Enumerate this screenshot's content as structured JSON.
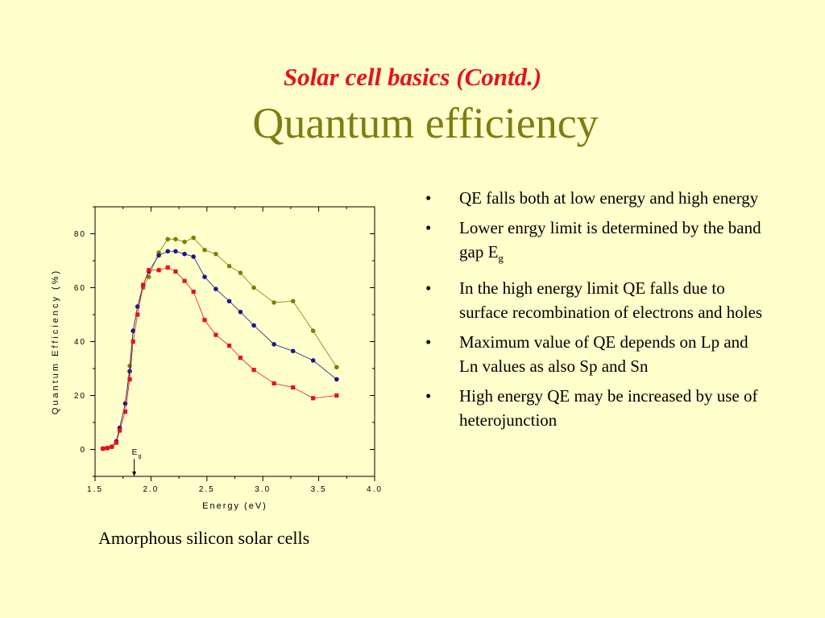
{
  "slide": {
    "subtitle": "Solar cell basics (Contd.)",
    "title": "Quantum efficiency",
    "bullets": [
      {
        "text": "QE falls both at low energy and high energy"
      },
      {
        "text": "Lower enrgy limit is determined by the band gap E",
        "sub": "g"
      },
      {
        "text": "In the high energy limit QE falls due to surface recombination of electrons and holes"
      },
      {
        "text": "Maximum value of QE depends on Lp and Ln values as also Sp and Sn"
      },
      {
        "text": "High energy QE may be increased by use of heterojunction"
      }
    ],
    "bullet_symbol": "•",
    "caption": "Amorphous silicon solar cells"
  },
  "chart_data": {
    "type": "line",
    "xlabel": "Energy (eV)",
    "ylabel": "Quantum Efficiency (%)",
    "xlim": [
      1.5,
      4.0
    ],
    "ylim": [
      -10,
      90
    ],
    "xticks": [
      "1.5",
      "2.0",
      "2.5",
      "3.0",
      "3.5",
      "4.0"
    ],
    "yticks": [
      "0",
      "20",
      "40",
      "60",
      "80"
    ],
    "annotation": {
      "text": "E",
      "sub": "g",
      "x": 1.85
    },
    "series": [
      {
        "color": "#7f7f00",
        "marker": "circle",
        "x": [
          1.57,
          1.61,
          1.65,
          1.69,
          1.72,
          1.77,
          1.81,
          1.84,
          1.88,
          1.93,
          1.98,
          2.07,
          2.15,
          2.22,
          2.3,
          2.38,
          2.48,
          2.58,
          2.7,
          2.8,
          2.92,
          3.1,
          3.27,
          3.45,
          3.66
        ],
        "y": [
          0.3,
          0.5,
          1.0,
          3.0,
          8.0,
          17.0,
          31.0,
          44.0,
          53.0,
          60.0,
          64.0,
          73.0,
          78.0,
          78.0,
          77.0,
          78.5,
          74.0,
          72.5,
          68.0,
          65.5,
          60.0,
          54.5,
          55.0,
          44.0,
          30.5
        ]
      },
      {
        "color": "#1a1a8c",
        "marker": "circle",
        "x": [
          1.57,
          1.61,
          1.65,
          1.69,
          1.72,
          1.77,
          1.81,
          1.84,
          1.88,
          1.93,
          1.98,
          2.07,
          2.15,
          2.22,
          2.3,
          2.38,
          2.48,
          2.58,
          2.7,
          2.8,
          2.92,
          3.1,
          3.27,
          3.45,
          3.66
        ],
        "y": [
          0.3,
          0.5,
          1.0,
          3.0,
          8.0,
          17.0,
          29.0,
          44.0,
          53.0,
          61.0,
          66.0,
          72.0,
          73.5,
          73.5,
          72.5,
          71.5,
          64.0,
          59.5,
          55.0,
          51.0,
          46.0,
          39.0,
          36.5,
          33.0,
          26.0
        ]
      },
      {
        "color": "#e8111a",
        "marker": "square",
        "x": [
          1.57,
          1.61,
          1.65,
          1.69,
          1.72,
          1.77,
          1.81,
          1.84,
          1.88,
          1.93,
          1.98,
          2.07,
          2.15,
          2.22,
          2.3,
          2.38,
          2.48,
          2.58,
          2.7,
          2.8,
          2.92,
          3.1,
          3.27,
          3.45,
          3.66
        ],
        "y": [
          0.3,
          0.5,
          1.0,
          2.5,
          7.0,
          14.0,
          26.0,
          40.0,
          50.0,
          61.0,
          66.5,
          66.5,
          67.5,
          66.0,
          62.5,
          58.5,
          48.0,
          42.5,
          38.5,
          34.0,
          29.5,
          24.5,
          23.0,
          19.0,
          20.0
        ]
      }
    ]
  }
}
